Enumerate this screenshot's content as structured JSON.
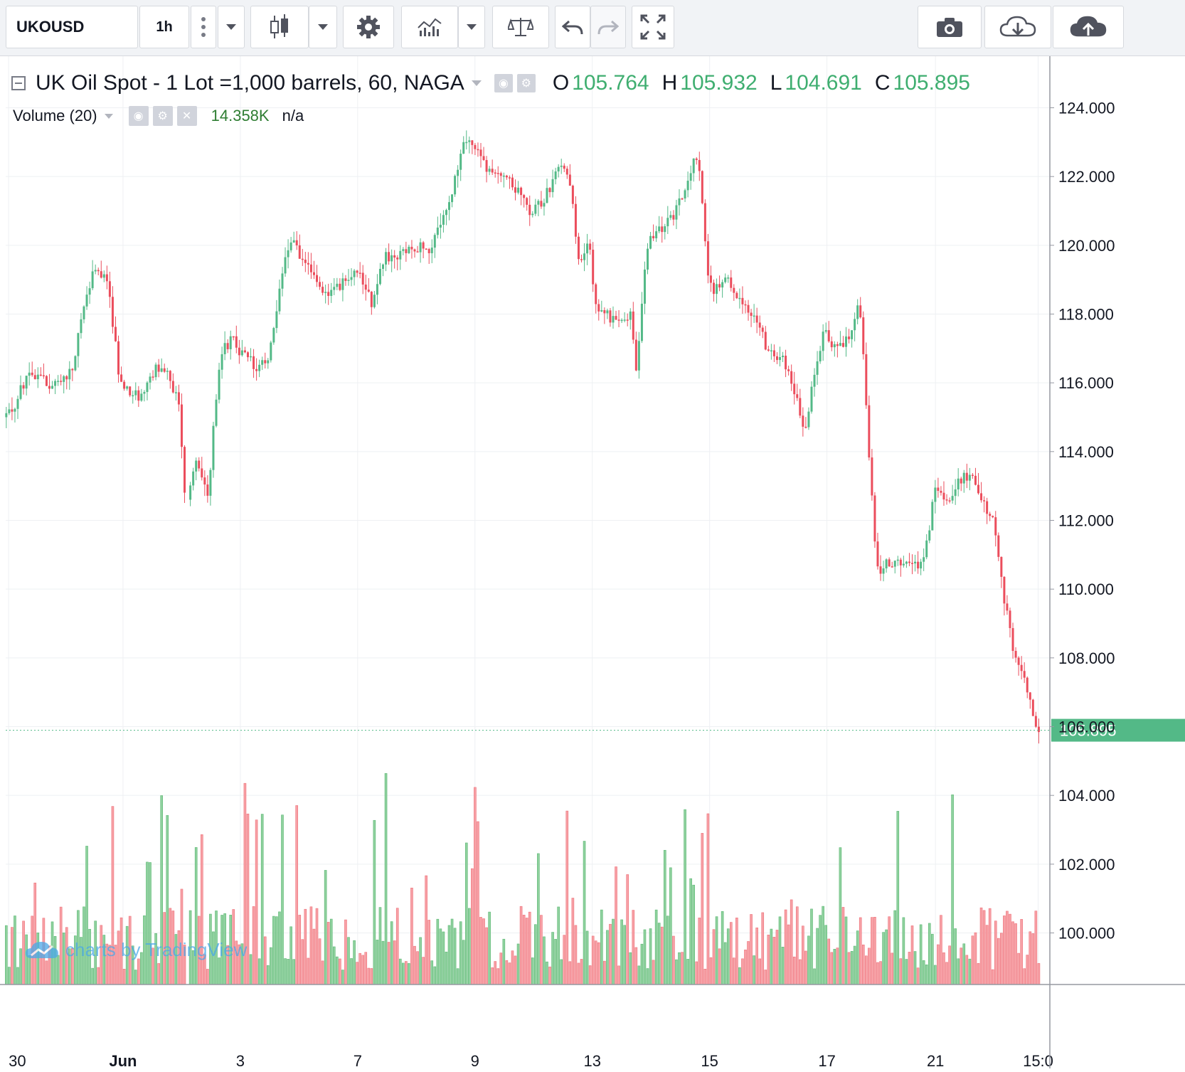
{
  "toolbar": {
    "symbol": "UKOUSD",
    "interval": "1h",
    "icons": [
      "more-vert-icon",
      "dropdown-icon",
      "candlestick-icon",
      "dropdown-icon",
      "settings-icon",
      "indicators-icon",
      "dropdown-icon",
      "compare-icon",
      "undo-icon",
      "redo-icon",
      "fullscreen-icon",
      "camera-icon",
      "cloud-download-icon",
      "cloud-upload-icon"
    ]
  },
  "legend": {
    "title": "UK Oil Spot - 1 Lot =1,000 barrels, 60, NAGA",
    "o_label": "O",
    "o": "105.764",
    "h_label": "H",
    "h": "105.932",
    "l_label": "L",
    "l": "104.691",
    "c_label": "C",
    "c": "105.895"
  },
  "volume_legend": {
    "label": "Volume (20)",
    "value": "14.358K",
    "na": "n/a"
  },
  "watermark": "charts by TradingView",
  "colors": {
    "up": "#53b987",
    "down": "#eb4d5c",
    "vol_up": "#8fd19e",
    "vol_down": "#f7a1a6",
    "grid": "#eef0f3"
  },
  "chart_data": {
    "type": "candlestick",
    "title": "UK Oil Spot - 1 Lot =1,000 barrels, 60, NAGA",
    "interval": "60",
    "last_price": "105.895",
    "y_ticks": [
      "124.000",
      "122.000",
      "120.000",
      "118.000",
      "116.000",
      "114.000",
      "112.000",
      "110.000",
      "108.000",
      "106.000",
      "104.000",
      "102.000",
      "100.000"
    ],
    "ylim": [
      98.5,
      125.5
    ],
    "x_ticks": [
      {
        "label": "30",
        "t": 0.5
      },
      {
        "label": "Jun",
        "t": 20
      },
      {
        "label": "3",
        "t": 40
      },
      {
        "label": "7",
        "t": 60
      },
      {
        "label": "9",
        "t": 80
      },
      {
        "label": "13",
        "t": 100
      },
      {
        "label": "15",
        "t": 120
      },
      {
        "label": "17",
        "t": 140
      },
      {
        "label": "21",
        "t": 158.5
      },
      {
        "label": "15:0",
        "t": 176
      }
    ],
    "price_path": [
      [
        0,
        115
      ],
      [
        2,
        115.3
      ],
      [
        4,
        116.2
      ],
      [
        6,
        116.3
      ],
      [
        8,
        115.8
      ],
      [
        10,
        116.1
      ],
      [
        12,
        116.4
      ],
      [
        14,
        118.5
      ],
      [
        16,
        119.5
      ],
      [
        18,
        118.8
      ],
      [
        20,
        116
      ],
      [
        22,
        115.7
      ],
      [
        24,
        115.6
      ],
      [
        26,
        116.5
      ],
      [
        28,
        116.2
      ],
      [
        30,
        115.5
      ],
      [
        31,
        112.6
      ],
      [
        33,
        113.8
      ],
      [
        35,
        112.8
      ],
      [
        37,
        116.8
      ],
      [
        39,
        117.3
      ],
      [
        41,
        116.8
      ],
      [
        43,
        116.5
      ],
      [
        45,
        116.5
      ],
      [
        47,
        118.5
      ],
      [
        49,
        120.3
      ],
      [
        51,
        119.5
      ],
      [
        53,
        119.2
      ],
      [
        55,
        118.6
      ],
      [
        57,
        118.8
      ],
      [
        59,
        119
      ],
      [
        61,
        119.2
      ],
      [
        63,
        118.3
      ],
      [
        65,
        119.7
      ],
      [
        67,
        119.6
      ],
      [
        69,
        119.8
      ],
      [
        71,
        120
      ],
      [
        73,
        119.9
      ],
      [
        75,
        120.8
      ],
      [
        77,
        121.8
      ],
      [
        78,
        122.8
      ],
      [
        80,
        123
      ],
      [
        82,
        122.3
      ],
      [
        84,
        122.2
      ],
      [
        86,
        122.1
      ],
      [
        88,
        121.5
      ],
      [
        90,
        121
      ],
      [
        92,
        121.2
      ],
      [
        94,
        122
      ],
      [
        95,
        122.5
      ],
      [
        97,
        121.5
      ],
      [
        98,
        119.5
      ],
      [
        100,
        120.2
      ],
      [
        101,
        118.2
      ],
      [
        103,
        118
      ],
      [
        105,
        117.7
      ],
      [
        107,
        118
      ],
      [
        108,
        116.4
      ],
      [
        110,
        120.2
      ],
      [
        112,
        120.4
      ],
      [
        114,
        120.8
      ],
      [
        116,
        121.5
      ],
      [
        117,
        122
      ],
      [
        118,
        122.8
      ],
      [
        119,
        121.9
      ],
      [
        120,
        119.5
      ],
      [
        121,
        118.5
      ],
      [
        123,
        119.2
      ],
      [
        125,
        118.6
      ],
      [
        127,
        118.2
      ],
      [
        129,
        117.5
      ],
      [
        131,
        116.8
      ],
      [
        133,
        116.7
      ],
      [
        135,
        115.8
      ],
      [
        137,
        114.5
      ],
      [
        138,
        116
      ],
      [
        140,
        117.5
      ],
      [
        142,
        117
      ],
      [
        144,
        117.3
      ],
      [
        146,
        118.3
      ],
      [
        147,
        116
      ],
      [
        148,
        113
      ],
      [
        149,
        110.5
      ],
      [
        151,
        110.8
      ],
      [
        153,
        110.8
      ],
      [
        155,
        110.6
      ],
      [
        157,
        110.8
      ],
      [
        159,
        113
      ],
      [
        161,
        112.6
      ],
      [
        163,
        113.1
      ],
      [
        165,
        113.4
      ],
      [
        167,
        112.5
      ],
      [
        169,
        112.1
      ],
      [
        170,
        110.5
      ],
      [
        172,
        108.4
      ],
      [
        174,
        107.5
      ],
      [
        176,
        106
      ],
      [
        177,
        105.9
      ]
    ]
  }
}
